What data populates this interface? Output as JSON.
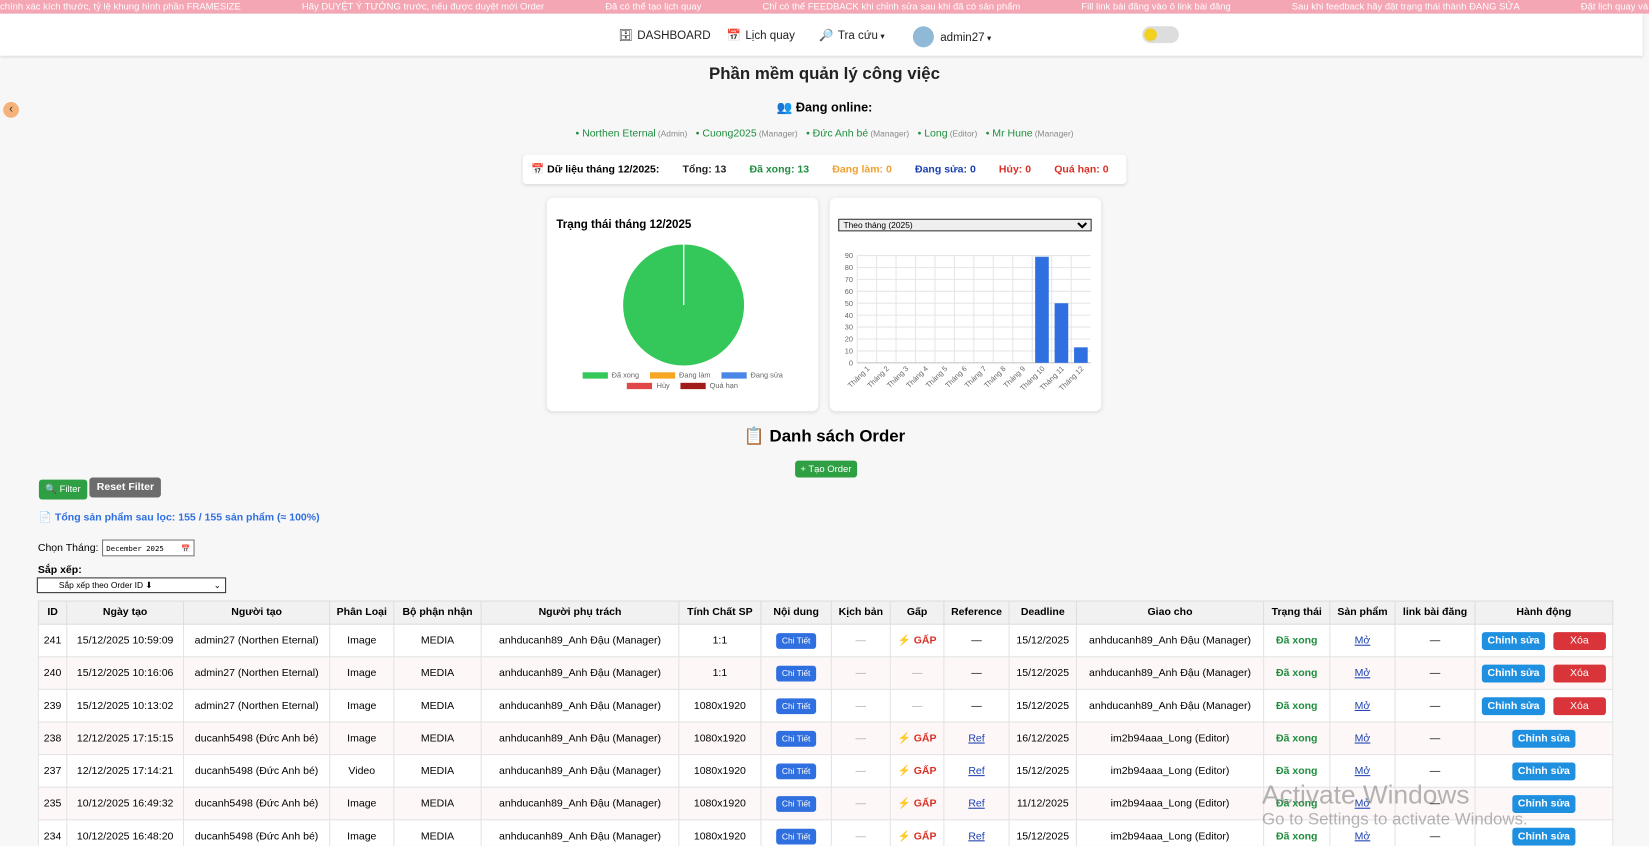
{
  "ticker": [
    "chính xác kích thước, tỷ lệ khung hình phần FRAMESIZE",
    "Hãy DUYỆT Ý TƯỞNG trước, nếu được duyệt mới Order",
    "Đã có thể tạo lịch quay",
    "Chỉ có thể FEEDBACK khi chỉnh sửa sau khi đã có sản phẩm",
    "Fill link bài đăng vào ô link bài đăng",
    "Sau khi feedback hãy đặt trạng thái thành ĐANG SỬA",
    "Đặt lịch quay và order v"
  ],
  "nav": {
    "dashboard": "DASHBOARD",
    "schedule": "Lịch quay",
    "lookup": "Tra cứu",
    "user": "admin27"
  },
  "title": "Phần mềm quản lý công việc",
  "online": {
    "heading": "Đang online:",
    "users": [
      {
        "name": "Northen Eternal",
        "role": "(Admin)"
      },
      {
        "name": "Cuong2025",
        "role": "(Manager)"
      },
      {
        "name": "Đức Anh bé",
        "role": "(Manager)"
      },
      {
        "name": "Long",
        "role": "(Editor)"
      },
      {
        "name": "Mr Hune",
        "role": "(Manager)"
      }
    ]
  },
  "summary": {
    "label": "Dữ liệu tháng 12/2025:",
    "items": [
      {
        "label": "Tổng:",
        "value": 13,
        "color": "#222222"
      },
      {
        "label": "Đã xong:",
        "value": 13,
        "color": "#1e8e3e"
      },
      {
        "label": "Đang làm:",
        "value": 0,
        "color": "#f0a030"
      },
      {
        "label": "Đang sửa:",
        "value": 0,
        "color": "#1a3fb0"
      },
      {
        "label": "Hủy:",
        "value": 0,
        "color": "#d93025"
      },
      {
        "label": "Quá hạn:",
        "value": 0,
        "color": "#d93025"
      }
    ]
  },
  "chart_data": [
    {
      "type": "pie",
      "title": "Trạng thái tháng 12/2025",
      "categories": [
        "Đã xong",
        "Đang làm",
        "Đang sửa",
        "Hủy",
        "Quá hạn"
      ],
      "values": [
        13,
        0,
        0,
        0,
        0
      ],
      "colors": [
        "#34c759",
        "#f5a623",
        "#4a86e8",
        "#e04848",
        "#a01c1c"
      ]
    },
    {
      "type": "bar",
      "select": "Theo tháng (2025)",
      "categories": [
        "Tháng 1",
        "Tháng 2",
        "Tháng 3",
        "Tháng 4",
        "Tháng 5",
        "Tháng 6",
        "Tháng 7",
        "Tháng 8",
        "Tháng 9",
        "Tháng 10",
        "Tháng 11",
        "Tháng 12"
      ],
      "values": [
        0,
        0,
        0,
        0,
        0,
        0,
        0,
        0,
        0,
        89,
        50,
        13
      ],
      "color": "#2f6fe0",
      "ylim": [
        0,
        90
      ],
      "yticks": [
        0,
        10,
        20,
        30,
        40,
        50,
        60,
        70,
        80,
        90
      ],
      "grid": true
    }
  ],
  "orders": {
    "heading": "Danh sách Order",
    "create": "+ Tạo Order",
    "filter": "Filter",
    "reset": "Reset Filter",
    "count": "Tổng sản phẩm sau lọc: 155 / 155 sản phẩm (≈ 100%)",
    "month_label": "Chọn Tháng:",
    "month_value": "December 2025",
    "sort_label": "Sắp xếp:",
    "sort_value": "Sắp xếp theo Order ID ⬇",
    "headers": [
      "ID",
      "Ngày tạo",
      "Người tạo",
      "Phân Loại",
      "Bộ phận nhận",
      "Người phụ trách",
      "Tính Chất SP",
      "Nội dung",
      "Kịch bản",
      "Gấp",
      "Reference",
      "Deadline",
      "Giao cho",
      "Trạng thái",
      "Sản phẩm",
      "link bài đăng",
      "Hành động"
    ],
    "rows": [
      [
        "241",
        "15/12/2025 10:59:09",
        "admin27 (Northen Eternal)",
        "Image",
        "MEDIA",
        "anhducanh89_Anh Đậu (Manager)",
        "1:1",
        "Chi Tiết",
        "—",
        "GẤP",
        "—",
        "15/12/2025",
        "anhducanh89_Anh Đậu (Manager)",
        "Đã xong",
        "Mở",
        "—",
        [
          "Chỉnh sửa",
          "Xóa"
        ]
      ],
      [
        "240",
        "15/12/2025 10:16:06",
        "admin27 (Northen Eternal)",
        "Image",
        "MEDIA",
        "anhducanh89_Anh Đậu (Manager)",
        "1:1",
        "Chi Tiết",
        "—",
        "—",
        "—",
        "15/12/2025",
        "anhducanh89_Anh Đậu (Manager)",
        "Đã xong",
        "Mở",
        "—",
        [
          "Chỉnh sửa",
          "Xóa"
        ]
      ],
      [
        "239",
        "15/12/2025 10:13:02",
        "admin27 (Northen Eternal)",
        "Image",
        "MEDIA",
        "anhducanh89_Anh Đậu (Manager)",
        "1080x1920",
        "Chi Tiết",
        "—",
        "—",
        "—",
        "15/12/2025",
        "anhducanh89_Anh Đậu (Manager)",
        "Đã xong",
        "Mở",
        "—",
        [
          "Chỉnh sửa",
          "Xóa"
        ]
      ],
      [
        "238",
        "12/12/2025 17:15:15",
        "ducanh5498 (Đức Anh bé)",
        "Image",
        "MEDIA",
        "anhducanh89_Anh Đậu (Manager)",
        "1080x1920",
        "Chi Tiết",
        "—",
        "GẤP",
        "Ref",
        "16/12/2025",
        "im2b94aaa_Long (Editor)",
        "Đã xong",
        "Mở",
        "—",
        [
          "Chỉnh sửa"
        ]
      ],
      [
        "237",
        "12/12/2025 17:14:21",
        "ducanh5498 (Đức Anh bé)",
        "Video",
        "MEDIA",
        "anhducanh89_Anh Đậu (Manager)",
        "1080x1920",
        "Chi Tiết",
        "—",
        "GẤP",
        "Ref",
        "15/12/2025",
        "im2b94aaa_Long (Editor)",
        "Đã xong",
        "Mở",
        "—",
        [
          "Chỉnh sửa"
        ]
      ],
      [
        "235",
        "10/12/2025 16:49:32",
        "ducanh5498 (Đức Anh bé)",
        "Image",
        "MEDIA",
        "anhducanh89_Anh Đậu (Manager)",
        "1080x1920",
        "Chi Tiết",
        "—",
        "GẤP",
        "Ref",
        "11/12/2025",
        "im2b94aaa_Long (Editor)",
        "Đã xong",
        "Mở",
        "—",
        [
          "Chỉnh sửa"
        ]
      ],
      [
        "234",
        "10/12/2025 16:48:20",
        "ducanh5498 (Đức Anh bé)",
        "Image",
        "MEDIA",
        "anhducanh89_Anh Đậu (Manager)",
        "1080x1920",
        "Chi Tiết",
        "—",
        "GẤP",
        "Ref",
        "15/12/2025",
        "im2b94aaa_Long (Editor)",
        "Đã xong",
        "Mở",
        "—",
        [
          "Chỉnh sửa"
        ]
      ]
    ]
  },
  "watermark": {
    "title": "Activate Windows",
    "text": "Go to Settings to activate Windows."
  }
}
